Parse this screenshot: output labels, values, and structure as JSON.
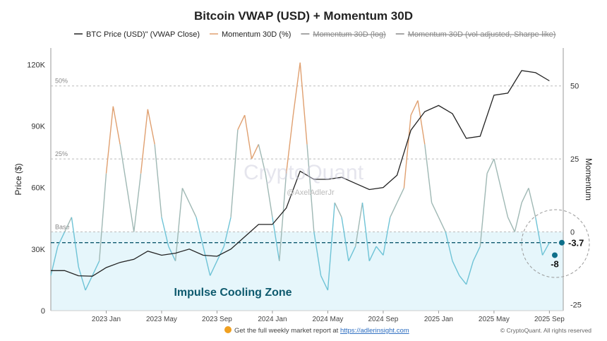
{
  "chart_data": {
    "type": "line",
    "title": "Bitcoin VWAP (USD) + Momentum 30D",
    "legend": [
      {
        "name": "BTC Price (USD)\" (VWAP Close)",
        "color": "#222222",
        "struck": false
      },
      {
        "name": "Momentum 30D (%)",
        "color": "#e0a070",
        "struck": false
      },
      {
        "name": "Momentum 30D (log)",
        "color": "#888888",
        "struck": true
      },
      {
        "name": "Momentum 30D (vol-adjusted, Sharpe-like)",
        "color": "#888888",
        "struck": true
      }
    ],
    "legend_placement": "top",
    "ylabel_left": "Price ($)",
    "ylabel_right": "Momentum",
    "yticks_left": [
      "0",
      "30K",
      "60K",
      "90K",
      "120K"
    ],
    "yticks_right": [
      "-25",
      "0",
      "25",
      "50"
    ],
    "ylim_left": [
      0,
      128000
    ],
    "ylim_right": [
      -27,
      63
    ],
    "xticks": [
      "2023 Jan",
      "2023 May",
      "2023 Sep",
      "2024 Jan",
      "2024 May",
      "2024 Sep",
      "2025 Jan",
      "2025 May",
      "2025 Sep"
    ],
    "xrange": [
      "2022-09",
      "2025-10"
    ],
    "ref_lines": [
      {
        "label": "50%",
        "value": 50
      },
      {
        "label": "25%",
        "value": 25
      },
      {
        "label": "Base",
        "value": 0
      }
    ],
    "zone_label": "Impulse Cooling Zone",
    "current_line": -3.7,
    "annotations": [
      {
        "label": "-3.7",
        "value": -3.7
      },
      {
        "label": "-8",
        "value": -8
      }
    ],
    "colors": {
      "price": "#222222",
      "momentum_high": "#e0a070",
      "momentum_mid": "#9fb8b4",
      "momentum_low": "#6ec3d6",
      "zone": "#e6f6fb",
      "marker": "#0e6f8a"
    },
    "price_months": [
      "2022-09",
      "2022-10",
      "2022-11",
      "2022-12",
      "2023-01",
      "2023-02",
      "2023-03",
      "2023-04",
      "2023-05",
      "2023-06",
      "2023-07",
      "2023-08",
      "2023-09",
      "2023-10",
      "2023-11",
      "2023-12",
      "2024-01",
      "2024-02",
      "2024-03",
      "2024-04",
      "2024-05",
      "2024-06",
      "2024-07",
      "2024-08",
      "2024-09",
      "2024-10",
      "2024-11",
      "2024-12",
      "2025-01",
      "2025-02",
      "2025-03",
      "2025-04",
      "2025-05",
      "2025-06",
      "2025-07",
      "2025-08",
      "2025-09"
    ],
    "price": [
      19500,
      19500,
      17000,
      16800,
      21000,
      23500,
      25000,
      29000,
      27000,
      28000,
      30000,
      27000,
      26500,
      30000,
      36000,
      42000,
      42000,
      50000,
      68000,
      64000,
      64000,
      65000,
      62000,
      59000,
      60000,
      66000,
      88000,
      97000,
      100000,
      96000,
      84000,
      85000,
      105000,
      106000,
      117000,
      116000,
      112000
    ],
    "momentum_semimonthly": [
      -15,
      -5,
      0,
      5,
      -12,
      -20,
      -15,
      -10,
      20,
      43,
      30,
      15,
      0,
      20,
      42,
      30,
      5,
      -5,
      -10,
      15,
      10,
      5,
      -5,
      -15,
      -10,
      -5,
      5,
      35,
      40,
      25,
      30,
      20,
      5,
      -10,
      20,
      40,
      58,
      30,
      0,
      -15,
      -20,
      10,
      5,
      -10,
      -5,
      10,
      -10,
      -5,
      -8,
      5,
      10,
      15,
      40,
      45,
      30,
      10,
      5,
      0,
      -10,
      -15,
      -18,
      -10,
      -5,
      20,
      25,
      15,
      5,
      0,
      10,
      15,
      5,
      -8,
      -3.7
    ]
  },
  "watermark": "CryptoQuant",
  "watermark_handle": "@AxelAdlerJr",
  "footer": {
    "text": "Get the full weekly market report at ",
    "link": "https://adlerinsight.com",
    "copyright": "© CryptoQuant. All rights reserved"
  }
}
